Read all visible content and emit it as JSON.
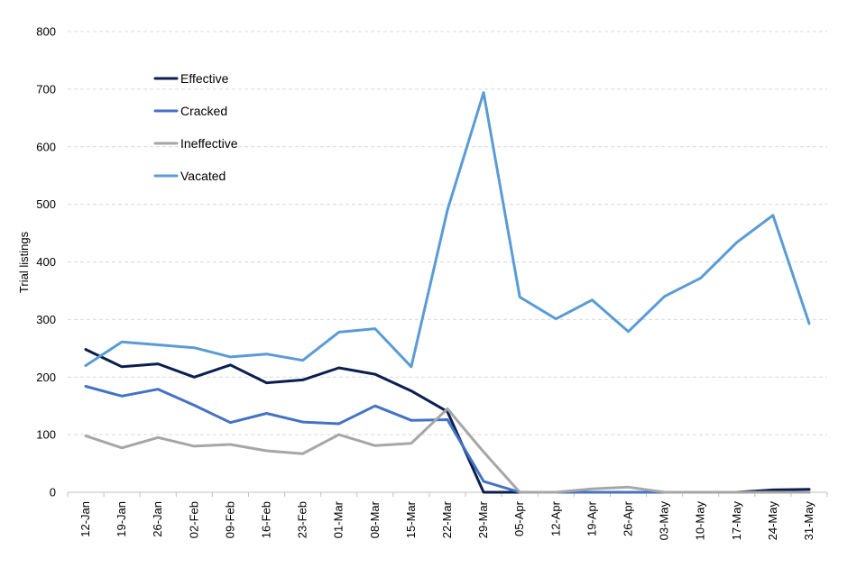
{
  "chart_data": {
    "type": "line",
    "title": "",
    "xlabel": "",
    "ylabel": "Trial listings",
    "ylim": [
      0,
      800
    ],
    "yticks": [
      0,
      100,
      200,
      300,
      400,
      500,
      600,
      700,
      800
    ],
    "grid": true,
    "legend_position": "top-left",
    "categories": [
      "12-Jan",
      "19-Jan",
      "26-Jan",
      "02-Feb",
      "09-Feb",
      "16-Feb",
      "23-Feb",
      "01-Mar",
      "08-Mar",
      "15-Mar",
      "22-Mar",
      "29-Mar",
      "05-Apr",
      "12-Apr",
      "19-Apr",
      "26-Apr",
      "03-May",
      "10-May",
      "17-May",
      "24-May",
      "31-May"
    ],
    "series": [
      {
        "name": "Effective",
        "color": "#0b1f4f",
        "values": [
          248,
          218,
          223,
          200,
          221,
          190,
          195,
          216,
          205,
          176,
          140,
          0,
          0,
          0,
          0,
          0,
          0,
          0,
          0,
          4,
          5
        ]
      },
      {
        "name": "Cracked",
        "color": "#4472c4",
        "values": [
          184,
          167,
          179,
          151,
          121,
          137,
          122,
          119,
          150,
          125,
          126,
          19,
          0,
          0,
          0,
          0,
          0,
          0,
          0,
          0,
          0
        ]
      },
      {
        "name": "Ineffective",
        "color": "#a6a6a6",
        "values": [
          98,
          77,
          95,
          80,
          83,
          72,
          67,
          100,
          81,
          85,
          145,
          70,
          0,
          0,
          6,
          9,
          0,
          0,
          0,
          0,
          0
        ]
      },
      {
        "name": "Vacated",
        "color": "#5b9bd5",
        "values": [
          220,
          261,
          256,
          251,
          235,
          240,
          229,
          278,
          284,
          218,
          490,
          694,
          339,
          301,
          334,
          279,
          340,
          372,
          434,
          481,
          293
        ]
      }
    ]
  }
}
